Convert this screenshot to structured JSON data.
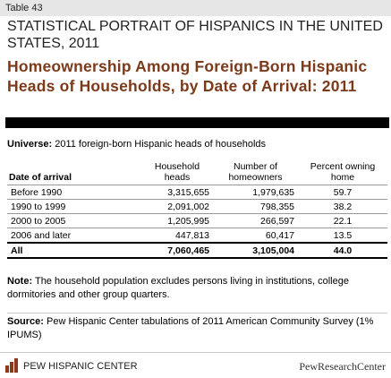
{
  "header": {
    "label": "Table 43",
    "title": "STATISTICAL PORTRAIT OF HISPANICS IN THE UNITED STATES, 2011",
    "subtitle": "Homeownership Among Foreign-Born Hispanic Heads of Households, by Date of Arrival: 2011"
  },
  "universe": {
    "label": "Universe:",
    "text": "2011 foreign-born Hispanic heads of households"
  },
  "table": {
    "columns": [
      "Date of arrival",
      "Household heads",
      "Number of homeowners",
      "Percent owning home"
    ],
    "rows": [
      [
        "Before 1990",
        "3,315,655",
        "1,979,635",
        "59.7"
      ],
      [
        "1990 to 1999",
        "2,091,002",
        "798,355",
        "38.2"
      ],
      [
        "2000 to 2005",
        "1,205,995",
        "266,597",
        "22.1"
      ],
      [
        "2006 and later",
        "447,813",
        "60,417",
        "13.5"
      ]
    ],
    "total": [
      "All",
      "7,060,465",
      "3,105,004",
      "44.0"
    ]
  },
  "note": {
    "label": "Note:",
    "text": "The household population excludes persons living in institutions, college dormitories and other group quarters."
  },
  "source": {
    "label": "Source:",
    "text": "Pew Hispanic Center tabulations of 2011 American Community Survey (1% IPUMS)"
  },
  "footer": {
    "left": "PEW HISPANIC CENTER",
    "right": "PewResearchCenter"
  }
}
